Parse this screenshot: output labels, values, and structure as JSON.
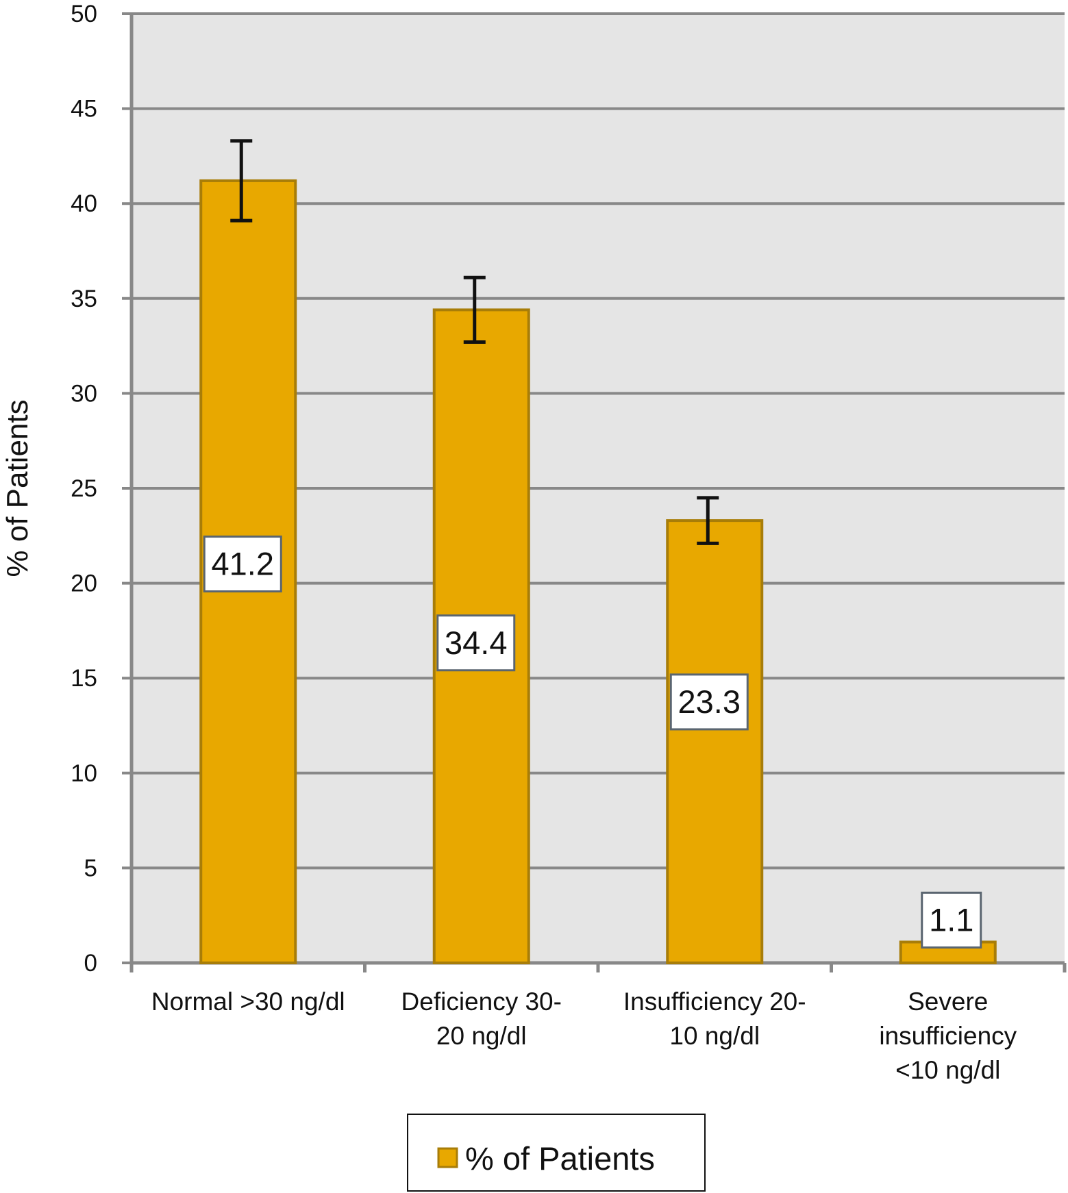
{
  "chart_data": {
    "type": "bar",
    "categories": [
      [
        "Normal >30 ng/dl"
      ],
      [
        "Deficiency 30-",
        "20 ng/dl"
      ],
      [
        "Insufficiency 20-",
        "10 ng/dl"
      ],
      [
        "Severe",
        "insufficiency",
        "<10 ng/dl"
      ]
    ],
    "series": [
      {
        "name": "% of Patients",
        "values": [
          41.2,
          34.4,
          23.3,
          1.1
        ],
        "error_upper": [
          43.3,
          36.1,
          24.5,
          null
        ],
        "error_lower": [
          39.1,
          32.7,
          22.1,
          null
        ]
      }
    ],
    "data_labels": [
      "41.2",
      "34.4",
      "23.3",
      "1.1"
    ],
    "ylabel": "% of Patients",
    "xlabel": "",
    "ylim": [
      0,
      50
    ],
    "yticks": [
      0,
      5,
      10,
      15,
      20,
      25,
      30,
      35,
      40,
      45,
      50
    ],
    "grid": true,
    "legend_position": "bottom",
    "colors": {
      "bar_fill": "#E8A800",
      "bar_stroke": "#A87D08",
      "plot_bg": "#E5E5E5",
      "grid": "#888888",
      "axis": "#888888",
      "error_bar": "#111111",
      "label_box_stroke": "#5A6570"
    }
  }
}
